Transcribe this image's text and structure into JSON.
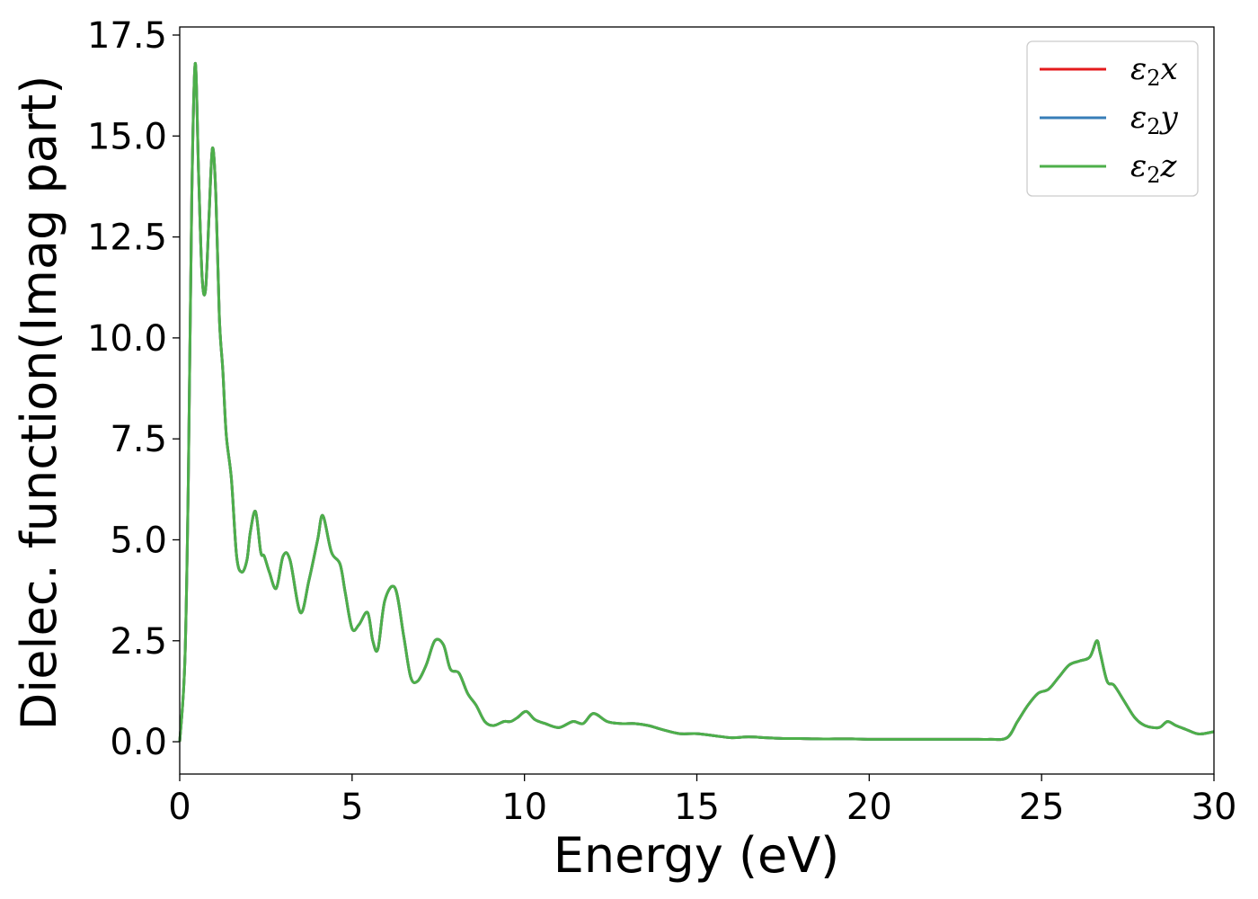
{
  "chart_data": {
    "type": "line",
    "title": "",
    "xlabel": "Energy (eV)",
    "ylabel": "Dielec. function(Imag part)",
    "xlim": [
      0,
      30
    ],
    "ylim": [
      -0.8,
      17.7
    ],
    "xticks": [
      0,
      5,
      10,
      15,
      20,
      25,
      30
    ],
    "xtick_labels": [
      "0",
      "5",
      "10",
      "15",
      "20",
      "25",
      "30"
    ],
    "yticks": [
      0,
      2.5,
      5,
      7.5,
      10,
      12.5,
      15,
      17.5
    ],
    "ytick_labels": [
      "0.0",
      "2.5",
      "5.0",
      "7.5",
      "10.0",
      "12.5",
      "15.0",
      "17.5"
    ],
    "grid": false,
    "legend_position": "top-right",
    "colors": {
      "x": "#e41a1c",
      "y": "#377eb8",
      "z": "#4daf4a"
    },
    "x": [
      0,
      0.15,
      0.25,
      0.35,
      0.45,
      0.55,
      0.65,
      0.75,
      0.85,
      0.95,
      1.05,
      1.15,
      1.25,
      1.35,
      1.5,
      1.65,
      1.8,
      1.95,
      2.05,
      2.2,
      2.35,
      2.45,
      2.6,
      2.8,
      3.0,
      3.2,
      3.5,
      3.75,
      4.0,
      4.15,
      4.4,
      4.65,
      4.8,
      5.0,
      5.2,
      5.45,
      5.6,
      5.75,
      5.95,
      6.25,
      6.5,
      6.7,
      6.9,
      7.15,
      7.4,
      7.65,
      7.85,
      8.1,
      8.35,
      8.6,
      8.85,
      9.1,
      9.4,
      9.6,
      9.8,
      10.05,
      10.3,
      10.6,
      11.0,
      11.4,
      11.7,
      12.0,
      12.4,
      12.8,
      13.2,
      13.6,
      14.0,
      14.5,
      15.0,
      15.5,
      16.0,
      16.5,
      17.0,
      17.5,
      18.0,
      18.5,
      19.0,
      19.5,
      20.0,
      20.5,
      21.0,
      21.5,
      22.0,
      22.5,
      23.0,
      23.5,
      24.0,
      24.3,
      24.6,
      24.9,
      25.2,
      25.5,
      25.8,
      26.1,
      26.4,
      26.6,
      26.7,
      26.9,
      27.1,
      27.4,
      27.7,
      28.0,
      28.4,
      28.65,
      28.9,
      29.2,
      29.5,
      29.7,
      30.0
    ],
    "series": [
      {
        "name": "ε2x",
        "values": [
          0.0,
          2.0,
          6.5,
          13.5,
          16.8,
          14.0,
          11.5,
          11.2,
          13.0,
          14.7,
          13.5,
          10.5,
          9.2,
          7.6,
          6.5,
          4.6,
          4.2,
          4.5,
          5.2,
          5.7,
          4.7,
          4.6,
          4.2,
          3.8,
          4.6,
          4.5,
          3.2,
          4.0,
          5.0,
          5.6,
          4.7,
          4.4,
          3.7,
          2.8,
          2.9,
          3.2,
          2.5,
          2.3,
          3.5,
          3.8,
          2.6,
          1.6,
          1.5,
          1.9,
          2.5,
          2.4,
          1.8,
          1.7,
          1.2,
          0.9,
          0.5,
          0.4,
          0.5,
          0.5,
          0.6,
          0.75,
          0.55,
          0.45,
          0.35,
          0.5,
          0.45,
          0.7,
          0.5,
          0.45,
          0.45,
          0.4,
          0.3,
          0.2,
          0.2,
          0.15,
          0.1,
          0.12,
          0.1,
          0.08,
          0.08,
          0.07,
          0.07,
          0.07,
          0.06,
          0.06,
          0.06,
          0.06,
          0.06,
          0.06,
          0.06,
          0.06,
          0.1,
          0.5,
          0.9,
          1.2,
          1.3,
          1.6,
          1.9,
          2.0,
          2.1,
          2.5,
          2.2,
          1.5,
          1.4,
          1.0,
          0.6,
          0.4,
          0.35,
          0.5,
          0.4,
          0.3,
          0.2,
          0.2,
          0.25
        ]
      },
      {
        "name": "ε2y",
        "values": [
          0.0,
          2.0,
          6.5,
          13.5,
          16.8,
          14.0,
          11.5,
          11.2,
          13.0,
          14.7,
          13.5,
          10.5,
          9.2,
          7.6,
          6.5,
          4.6,
          4.2,
          4.5,
          5.2,
          5.7,
          4.7,
          4.6,
          4.2,
          3.8,
          4.6,
          4.5,
          3.2,
          4.0,
          5.0,
          5.6,
          4.7,
          4.4,
          3.7,
          2.8,
          2.9,
          3.2,
          2.5,
          2.3,
          3.5,
          3.8,
          2.6,
          1.6,
          1.5,
          1.9,
          2.5,
          2.4,
          1.8,
          1.7,
          1.2,
          0.9,
          0.5,
          0.4,
          0.5,
          0.5,
          0.6,
          0.75,
          0.55,
          0.45,
          0.35,
          0.5,
          0.45,
          0.7,
          0.5,
          0.45,
          0.45,
          0.4,
          0.3,
          0.2,
          0.2,
          0.15,
          0.1,
          0.12,
          0.1,
          0.08,
          0.08,
          0.07,
          0.07,
          0.07,
          0.06,
          0.06,
          0.06,
          0.06,
          0.06,
          0.06,
          0.06,
          0.06,
          0.1,
          0.5,
          0.9,
          1.2,
          1.3,
          1.6,
          1.9,
          2.0,
          2.1,
          2.5,
          2.2,
          1.5,
          1.4,
          1.0,
          0.6,
          0.4,
          0.35,
          0.5,
          0.4,
          0.3,
          0.2,
          0.2,
          0.25
        ]
      },
      {
        "name": "ε2z",
        "values": [
          0.0,
          2.0,
          6.5,
          13.5,
          16.8,
          14.0,
          11.5,
          11.2,
          13.0,
          14.7,
          13.5,
          10.5,
          9.2,
          7.6,
          6.5,
          4.6,
          4.2,
          4.5,
          5.2,
          5.7,
          4.7,
          4.6,
          4.2,
          3.8,
          4.6,
          4.5,
          3.2,
          4.0,
          5.0,
          5.6,
          4.7,
          4.4,
          3.7,
          2.8,
          2.9,
          3.2,
          2.5,
          2.3,
          3.5,
          3.8,
          2.6,
          1.6,
          1.5,
          1.9,
          2.5,
          2.4,
          1.8,
          1.7,
          1.2,
          0.9,
          0.5,
          0.4,
          0.5,
          0.5,
          0.6,
          0.75,
          0.55,
          0.45,
          0.35,
          0.5,
          0.45,
          0.7,
          0.5,
          0.45,
          0.45,
          0.4,
          0.3,
          0.2,
          0.2,
          0.15,
          0.1,
          0.12,
          0.1,
          0.08,
          0.08,
          0.07,
          0.07,
          0.07,
          0.06,
          0.06,
          0.06,
          0.06,
          0.06,
          0.06,
          0.06,
          0.06,
          0.1,
          0.5,
          0.9,
          1.2,
          1.3,
          1.6,
          1.9,
          2.0,
          2.1,
          2.5,
          2.2,
          1.5,
          1.4,
          1.0,
          0.6,
          0.4,
          0.35,
          0.5,
          0.4,
          0.3,
          0.2,
          0.2,
          0.25
        ]
      }
    ],
    "legend": [
      {
        "key": "x",
        "base": "ε",
        "sub": "2",
        "var": "x"
      },
      {
        "key": "y",
        "base": "ε",
        "sub": "2",
        "var": "y"
      },
      {
        "key": "z",
        "base": "ε",
        "sub": "2",
        "var": "z"
      }
    ]
  }
}
